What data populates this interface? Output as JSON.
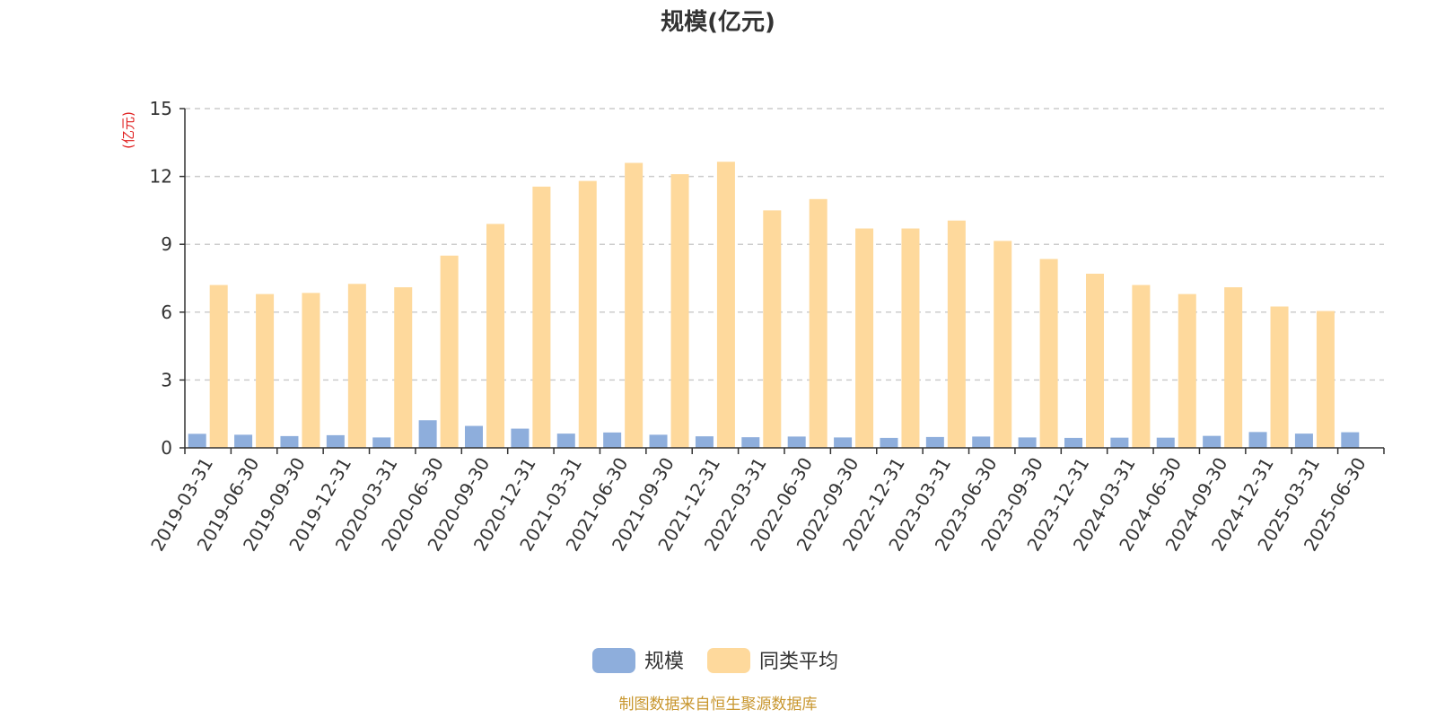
{
  "chart_data": {
    "type": "bar",
    "title": "规模(亿元)",
    "ylabel": "(亿元)",
    "ylim": [
      0,
      15
    ],
    "yticks": [
      0,
      3,
      6,
      9,
      12,
      15
    ],
    "grid": true,
    "legend_position": "bottom",
    "categories": [
      "2019-03-31",
      "2019-06-30",
      "2019-09-30",
      "2019-12-31",
      "2020-03-31",
      "2020-06-30",
      "2020-09-30",
      "2020-12-31",
      "2021-03-31",
      "2021-06-30",
      "2021-09-30",
      "2021-12-31",
      "2022-03-31",
      "2022-06-30",
      "2022-09-30",
      "2022-12-31",
      "2023-03-31",
      "2023-06-30",
      "2023-09-30",
      "2023-12-31",
      "2024-03-31",
      "2024-06-30",
      "2024-09-30",
      "2024-12-31",
      "2025-03-31",
      "2025-06-30"
    ],
    "series": [
      {
        "name": "规模",
        "color": "#8eaedc",
        "values": [
          0.62,
          0.58,
          0.52,
          0.56,
          0.46,
          1.22,
          0.97,
          0.85,
          0.63,
          0.68,
          0.58,
          0.51,
          0.47,
          0.5,
          0.46,
          0.44,
          0.48,
          0.5,
          0.46,
          0.44,
          0.45,
          0.45,
          0.53,
          0.7,
          0.63,
          0.69
        ]
      },
      {
        "name": "同类平均",
        "color": "#fed99c",
        "values": [
          7.2,
          6.8,
          6.85,
          7.25,
          7.1,
          8.5,
          9.9,
          11.55,
          11.8,
          12.6,
          12.1,
          12.65,
          10.5,
          11.0,
          9.7,
          9.7,
          10.05,
          9.15,
          8.35,
          7.7,
          7.2,
          6.8,
          7.1,
          6.25,
          6.05,
          null
        ]
      }
    ],
    "source": "制图数据来自恒生聚源数据库",
    "colors": {
      "axis": "#333333",
      "grid": "#cccccc",
      "unit_label": "#e02020",
      "source": "#c8962e"
    }
  }
}
